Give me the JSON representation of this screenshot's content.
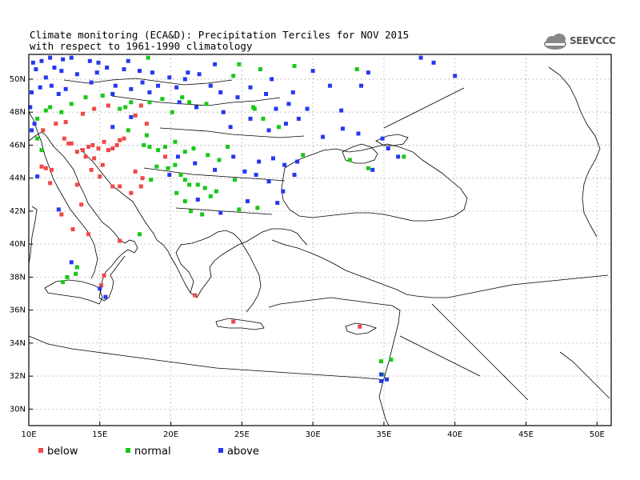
{
  "title": {
    "line1": "Climate monitoring (ECA&D): Precipitation Terciles for NOV 2015",
    "line2": "with respect to 1961-1990 climatology"
  },
  "logo": {
    "text": "SEEVCCC",
    "icon": "cloud-icon"
  },
  "colors": {
    "below": "#f04848",
    "normal": "#18c818",
    "above": "#2438f0"
  },
  "map": {
    "lon_range": [
      10,
      51
    ],
    "lat_range": [
      29,
      51.5
    ],
    "x_ticks": [
      {
        "lon": 10,
        "label": "10E"
      },
      {
        "lon": 15,
        "label": "15E"
      },
      {
        "lon": 20,
        "label": "20E"
      },
      {
        "lon": 25,
        "label": "25E"
      },
      {
        "lon": 30,
        "label": "30E"
      },
      {
        "lon": 35,
        "label": "35E"
      },
      {
        "lon": 40,
        "label": "40E"
      },
      {
        "lon": 45,
        "label": "45E"
      },
      {
        "lon": 50,
        "label": "50E"
      }
    ],
    "y_ticks": [
      {
        "lat": 30,
        "label": "30N"
      },
      {
        "lat": 32,
        "label": "32N"
      },
      {
        "lat": 34,
        "label": "34N"
      },
      {
        "lat": 36,
        "label": "36N"
      },
      {
        "lat": 38,
        "label": "38N"
      },
      {
        "lat": 40,
        "label": "40N"
      },
      {
        "lat": 42,
        "label": "42N"
      },
      {
        "lat": 44,
        "label": "44N"
      },
      {
        "lat": 46,
        "label": "46N"
      },
      {
        "lat": 48,
        "label": "48N"
      },
      {
        "lat": 50,
        "label": "50N"
      }
    ],
    "grid": true,
    "stations": {
      "below": [
        [
          11.2,
          44.6
        ],
        [
          11.6,
          44.5
        ],
        [
          12.8,
          46.1
        ],
        [
          13.4,
          45.6
        ],
        [
          13.8,
          45.7
        ],
        [
          14.0,
          45.3
        ],
        [
          14.2,
          45.9
        ],
        [
          14.5,
          46.0
        ],
        [
          14.9,
          45.8
        ],
        [
          15.3,
          46.2
        ],
        [
          15.6,
          45.7
        ],
        [
          15.9,
          45.8
        ],
        [
          16.4,
          46.3
        ],
        [
          16.7,
          46.4
        ],
        [
          16.2,
          46.0
        ],
        [
          14.6,
          45.2
        ],
        [
          15.2,
          44.8
        ],
        [
          15.9,
          43.5
        ],
        [
          16.4,
          43.5
        ],
        [
          17.2,
          43.1
        ],
        [
          14.4,
          44.5
        ],
        [
          15.0,
          44.1
        ],
        [
          13.4,
          43.6
        ],
        [
          13.7,
          42.4
        ],
        [
          12.3,
          41.8
        ],
        [
          11.5,
          43.7
        ],
        [
          10.9,
          44.7
        ],
        [
          12.5,
          46.4
        ],
        [
          13.0,
          46.1
        ],
        [
          11.9,
          47.3
        ],
        [
          12.6,
          47.4
        ],
        [
          13.8,
          47.9
        ],
        [
          14.6,
          48.2
        ],
        [
          15.6,
          48.4
        ],
        [
          17.5,
          47.8
        ],
        [
          18.3,
          47.3
        ],
        [
          17.9,
          48.4
        ],
        [
          13.1,
          40.9
        ],
        [
          14.2,
          40.6
        ],
        [
          16.4,
          40.2
        ],
        [
          15.1,
          37.5
        ],
        [
          15.3,
          38.1
        ],
        [
          21.7,
          36.9
        ],
        [
          24.4,
          35.3
        ],
        [
          33.3,
          35.0
        ],
        [
          17.9,
          43.5
        ],
        [
          18.0,
          44.0
        ],
        [
          17.5,
          44.4
        ],
        [
          19.6,
          45.3
        ],
        [
          11.0,
          46.9
        ]
      ],
      "normal": [
        [
          10.6,
          47.6
        ],
        [
          11.2,
          48.1
        ],
        [
          11.5,
          48.3
        ],
        [
          12.3,
          48.0
        ],
        [
          13.0,
          48.5
        ],
        [
          14.0,
          48.9
        ],
        [
          15.2,
          49.0
        ],
        [
          16.4,
          48.2
        ],
        [
          16.8,
          48.3
        ],
        [
          17.2,
          48.6
        ],
        [
          18.4,
          51.3
        ],
        [
          18.5,
          48.6
        ],
        [
          19.4,
          48.8
        ],
        [
          20.1,
          48.0
        ],
        [
          20.8,
          48.9
        ],
        [
          21.3,
          48.6
        ],
        [
          22.5,
          48.5
        ],
        [
          25.8,
          48.3
        ],
        [
          25.9,
          48.2
        ],
        [
          26.5,
          47.6
        ],
        [
          27.6,
          47.1
        ],
        [
          24.8,
          50.9
        ],
        [
          24.4,
          50.2
        ],
        [
          26.3,
          50.6
        ],
        [
          28.7,
          50.8
        ],
        [
          33.1,
          50.6
        ],
        [
          29.3,
          45.4
        ],
        [
          32.6,
          45.1
        ],
        [
          33.9,
          44.6
        ],
        [
          36.4,
          45.3
        ],
        [
          18.1,
          46.0
        ],
        [
          18.5,
          45.9
        ],
        [
          19.1,
          45.7
        ],
        [
          19.6,
          45.9
        ],
        [
          20.3,
          46.2
        ],
        [
          21.0,
          45.6
        ],
        [
          21.6,
          45.8
        ],
        [
          22.6,
          45.4
        ],
        [
          23.4,
          45.1
        ],
        [
          24.0,
          45.9
        ],
        [
          19.8,
          44.6
        ],
        [
          20.3,
          44.8
        ],
        [
          20.7,
          44.2
        ],
        [
          21.0,
          43.9
        ],
        [
          21.3,
          43.6
        ],
        [
          21.9,
          43.6
        ],
        [
          22.4,
          43.4
        ],
        [
          23.2,
          43.2
        ],
        [
          24.5,
          43.9
        ],
        [
          21.0,
          42.6
        ],
        [
          21.4,
          42.0
        ],
        [
          22.2,
          41.8
        ],
        [
          24.8,
          42.1
        ],
        [
          26.1,
          42.2
        ],
        [
          22.8,
          42.9
        ],
        [
          20.4,
          43.1
        ],
        [
          19.0,
          44.7
        ],
        [
          18.6,
          43.9
        ],
        [
          17.8,
          40.6
        ],
        [
          13.3,
          38.2
        ],
        [
          12.4,
          37.7
        ],
        [
          12.7,
          38.0
        ],
        [
          13.4,
          38.6
        ],
        [
          34.9,
          32.1
        ],
        [
          34.8,
          32.9
        ],
        [
          35.5,
          33.0
        ],
        [
          18.3,
          46.6
        ],
        [
          17.0,
          46.9
        ],
        [
          10.6,
          46.4
        ],
        [
          10.9,
          45.7
        ]
      ],
      "above": [
        [
          10.3,
          51.0
        ],
        [
          10.9,
          51.1
        ],
        [
          11.5,
          51.3
        ],
        [
          12.4,
          51.2
        ],
        [
          13.0,
          51.3
        ],
        [
          14.3,
          51.1
        ],
        [
          14.9,
          51.0
        ],
        [
          15.5,
          50.7
        ],
        [
          17.0,
          51.1
        ],
        [
          16.7,
          50.6
        ],
        [
          17.8,
          50.5
        ],
        [
          18.7,
          50.4
        ],
        [
          19.9,
          50.1
        ],
        [
          21.0,
          50.0
        ],
        [
          22.0,
          50.3
        ],
        [
          23.1,
          50.9
        ],
        [
          21.2,
          50.4
        ],
        [
          22.8,
          49.6
        ],
        [
          20.4,
          49.5
        ],
        [
          19.1,
          49.6
        ],
        [
          18.0,
          49.8
        ],
        [
          17.2,
          49.4
        ],
        [
          16.1,
          49.6
        ],
        [
          14.8,
          50.4
        ],
        [
          13.4,
          50.3
        ],
        [
          12.3,
          50.5
        ],
        [
          11.2,
          50.1
        ],
        [
          10.8,
          49.5
        ],
        [
          11.6,
          49.6
        ],
        [
          12.1,
          49.1
        ],
        [
          12.6,
          49.4
        ],
        [
          14.4,
          49.8
        ],
        [
          15.9,
          49.1
        ],
        [
          18.5,
          49.2
        ],
        [
          20.6,
          48.6
        ],
        [
          21.8,
          48.3
        ],
        [
          23.7,
          48.0
        ],
        [
          24.2,
          47.1
        ],
        [
          25.6,
          47.6
        ],
        [
          26.9,
          46.9
        ],
        [
          28.1,
          47.3
        ],
        [
          29.0,
          47.6
        ],
        [
          30.7,
          46.5
        ],
        [
          32.1,
          47.0
        ],
        [
          33.2,
          46.7
        ],
        [
          34.9,
          46.4
        ],
        [
          35.3,
          45.8
        ],
        [
          36.0,
          45.3
        ],
        [
          34.2,
          44.5
        ],
        [
          28.7,
          44.2
        ],
        [
          28.0,
          44.8
        ],
        [
          28.9,
          45.0
        ],
        [
          27.2,
          45.2
        ],
        [
          26.2,
          45.0
        ],
        [
          25.2,
          44.4
        ],
        [
          26.9,
          43.8
        ],
        [
          27.9,
          43.2
        ],
        [
          26.0,
          44.2
        ],
        [
          24.4,
          45.3
        ],
        [
          23.1,
          44.5
        ],
        [
          21.7,
          44.9
        ],
        [
          20.5,
          45.3
        ],
        [
          19.9,
          44.2
        ],
        [
          21.9,
          42.7
        ],
        [
          23.5,
          41.9
        ],
        [
          25.4,
          42.6
        ],
        [
          27.5,
          42.5
        ],
        [
          15.9,
          47.1
        ],
        [
          17.2,
          47.7
        ],
        [
          10.6,
          44.1
        ],
        [
          12.1,
          42.1
        ],
        [
          15.0,
          37.3
        ],
        [
          15.4,
          36.8
        ],
        [
          13.0,
          38.9
        ],
        [
          34.8,
          31.7
        ],
        [
          35.2,
          31.8
        ],
        [
          34.8,
          32.1
        ],
        [
          37.6,
          51.3
        ],
        [
          38.5,
          51.0
        ],
        [
          40.0,
          50.2
        ],
        [
          33.9,
          50.4
        ],
        [
          33.4,
          49.6
        ],
        [
          31.2,
          49.6
        ],
        [
          30.0,
          50.5
        ],
        [
          27.1,
          50.0
        ],
        [
          28.6,
          49.2
        ],
        [
          26.7,
          49.1
        ],
        [
          25.6,
          49.5
        ],
        [
          23.5,
          49.2
        ],
        [
          32.0,
          48.1
        ],
        [
          29.6,
          48.2
        ],
        [
          28.3,
          48.5
        ],
        [
          27.4,
          48.2
        ],
        [
          24.7,
          48.9
        ],
        [
          10.2,
          46.9
        ],
        [
          10.4,
          47.3
        ],
        [
          10.1,
          48.3
        ],
        [
          10.2,
          49.2
        ],
        [
          10.5,
          50.6
        ],
        [
          11.8,
          50.7
        ]
      ]
    }
  },
  "legend": [
    {
      "key": "below",
      "label": "below"
    },
    {
      "key": "normal",
      "label": "normal"
    },
    {
      "key": "above",
      "label": "above"
    }
  ]
}
